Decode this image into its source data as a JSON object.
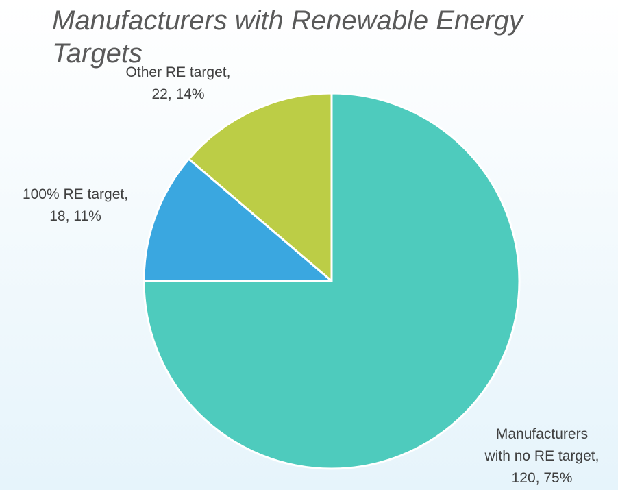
{
  "chart_data": {
    "type": "pie",
    "title": "Manufacturers with Renewable Energy Targets",
    "slices": [
      {
        "name": "Manufacturers with no RE target",
        "value": 120,
        "percent": "75%",
        "color": "#4ecbbd",
        "label_lines": [
          "Manufacturers",
          "with no RE target,",
          "120, 75%"
        ]
      },
      {
        "name": "100% RE target",
        "value": 18,
        "percent": "11%",
        "color": "#3aa7e0",
        "label_lines": [
          "100% RE target,",
          "18, 11%"
        ]
      },
      {
        "name": "Other RE target",
        "value": 22,
        "percent": "14%",
        "color": "#bccd46",
        "label_lines": [
          "Other RE target,",
          "22, 14%"
        ]
      }
    ]
  }
}
